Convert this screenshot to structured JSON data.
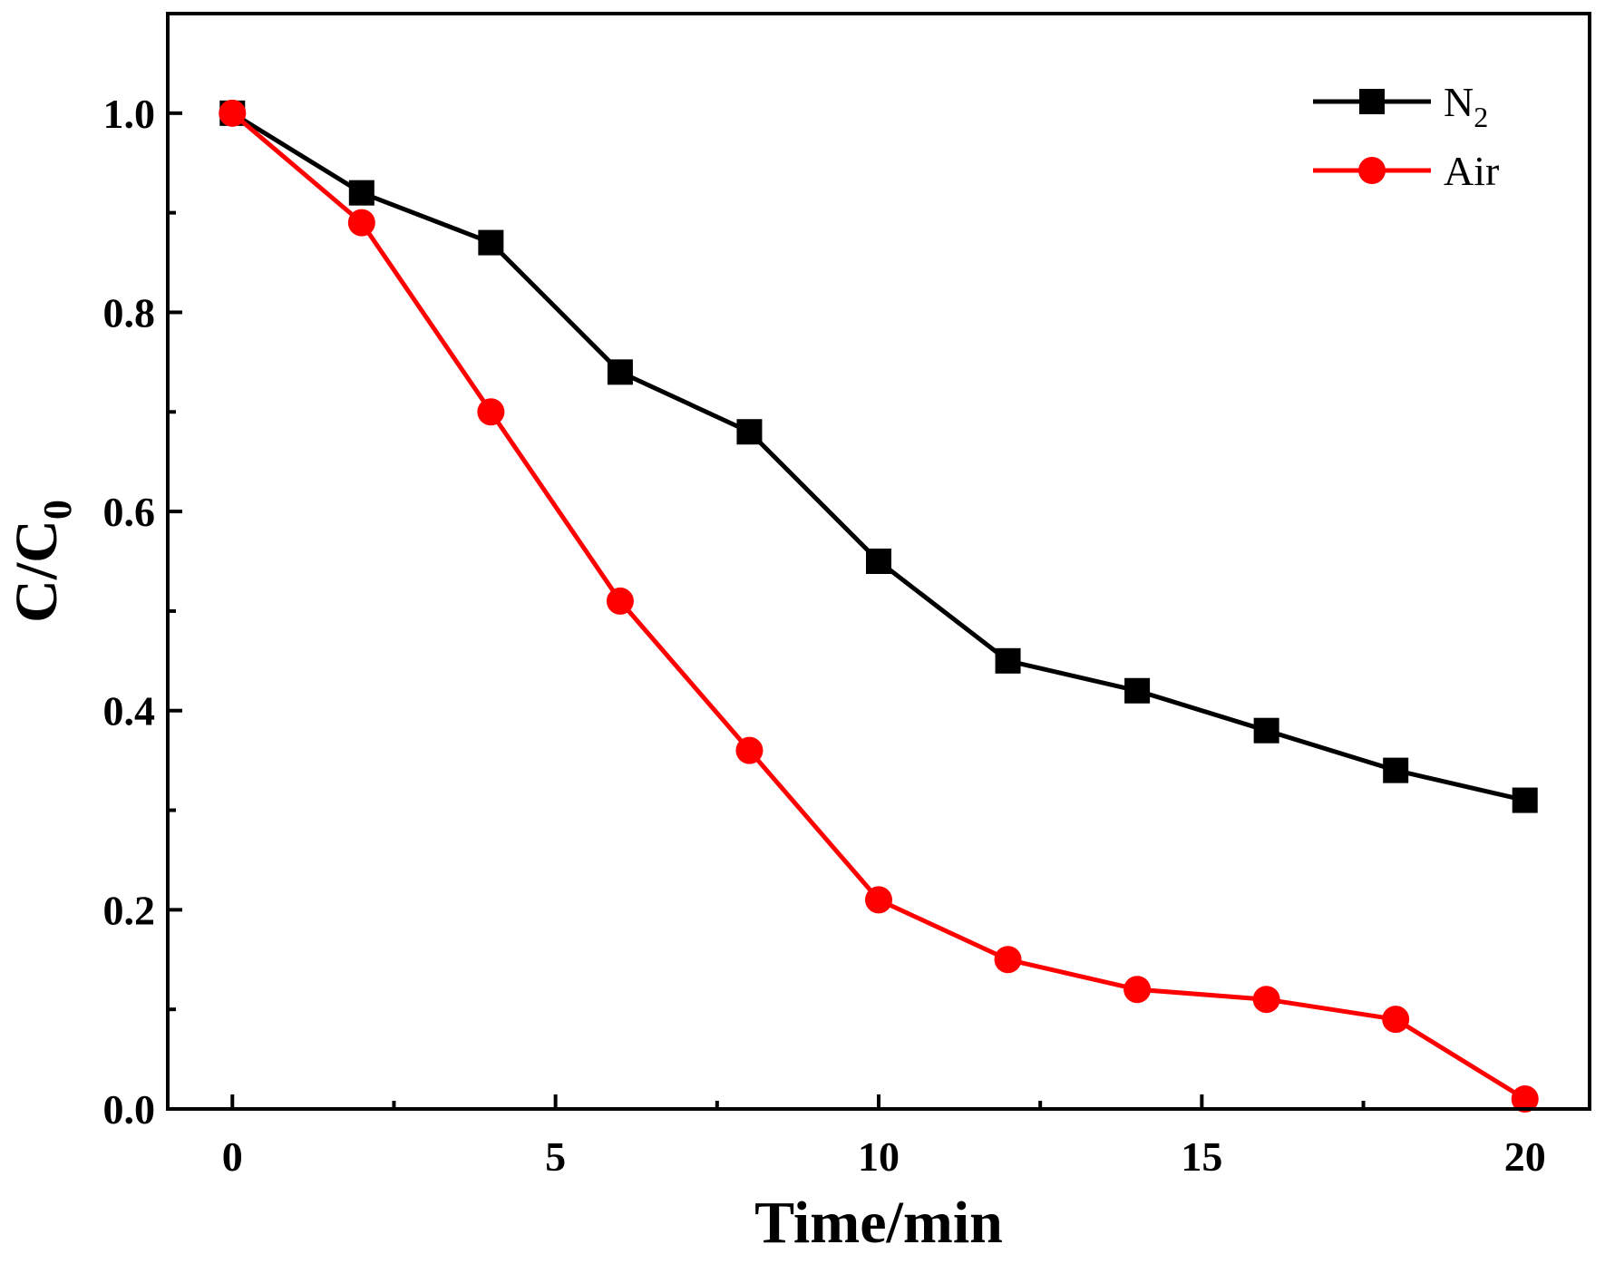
{
  "chart_data": {
    "type": "line",
    "title": "",
    "xlabel": "Time/min",
    "ylabel": {
      "main": "C/C",
      "sub": "0"
    },
    "xlim": [
      -1,
      21
    ],
    "ylim": [
      0,
      1.1
    ],
    "xticks": [
      0,
      5,
      10,
      15,
      20
    ],
    "xtick_labels": [
      "0",
      "5",
      "10",
      "15",
      "20"
    ],
    "xminor": [
      2.5,
      7.5,
      12.5,
      17.5
    ],
    "yticks": [
      0.0,
      0.2,
      0.4,
      0.6,
      0.8,
      1.0
    ],
    "ytick_labels": [
      "0.0",
      "0.2",
      "0.4",
      "0.6",
      "0.8",
      "1.0"
    ],
    "yminor": [
      0.1,
      0.3,
      0.5,
      0.7,
      0.9
    ],
    "legend_position": "top-right",
    "grid": false,
    "x": [
      0,
      2,
      4,
      6,
      8,
      10,
      12,
      14,
      16,
      18,
      20
    ],
    "series": [
      {
        "name": "N2",
        "label_main": "N",
        "label_sub": "2",
        "color": "#000000",
        "marker": "square",
        "values": [
          1.0,
          0.92,
          0.87,
          0.74,
          0.68,
          0.55,
          0.45,
          0.42,
          0.38,
          0.34,
          0.31
        ]
      },
      {
        "name": "Air",
        "label_main": "Air",
        "label_sub": "",
        "color": "#ff0000",
        "marker": "circle",
        "values": [
          1.0,
          0.89,
          0.7,
          0.51,
          0.36,
          0.21,
          0.15,
          0.12,
          0.11,
          0.09,
          0.01
        ]
      }
    ]
  }
}
